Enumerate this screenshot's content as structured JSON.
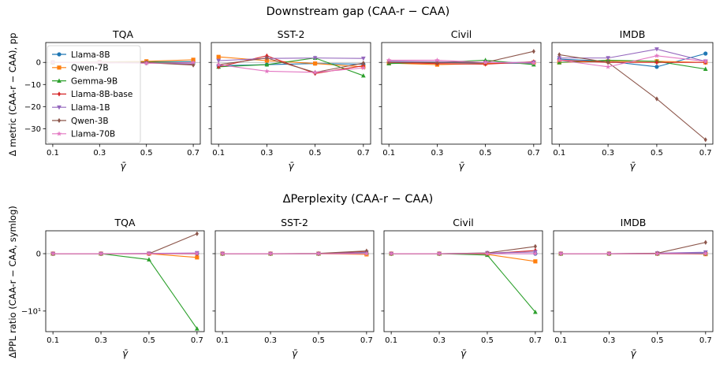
{
  "colors": {
    "Llama-8B": "#1f77b4",
    "Qwen-7B": "#ff7f0e",
    "Gemma-9B": "#2ca02c",
    "Llama-8B-base": "#d62728",
    "Llama-1B": "#9467bd",
    "Qwen-3B": "#8c564b",
    "Llama-70B": "#e377c2"
  },
  "markers": {
    "Llama-8B": "circle",
    "Qwen-7B": "square",
    "Gemma-9B": "triangle-up",
    "Llama-8B-base": "diamond",
    "Llama-1B": "triangle-down",
    "Qwen-3B": "diamond",
    "Llama-70B": "star"
  },
  "legend": {
    "entries": [
      "Llama-8B",
      "Qwen-7B",
      "Gemma-9B",
      "Llama-8B-base",
      "Llama-1B",
      "Qwen-3B",
      "Llama-70B"
    ],
    "placement": "upper-left of first panel"
  },
  "chart_data": [
    {
      "type": "line",
      "title": "Downstream gap (CAA-r − CAA)",
      "ylabel": "Δ metric (CAA-r − CAA), pp",
      "xlabel": "γ̄",
      "x": [
        0.1,
        0.3,
        0.5,
        0.7
      ],
      "xticks": [
        "0.1",
        "0.3",
        "0.5",
        "0.7"
      ],
      "xlim": [
        0.07,
        0.73
      ],
      "ylim": [
        -37,
        9
      ],
      "yscale": "linear",
      "yticks": [
        0,
        -10,
        -20,
        -30
      ],
      "ytick_labels": [
        "0",
        "−10",
        "−20",
        "−30"
      ],
      "shared_y": true,
      "zero_line": true,
      "panels": [
        {
          "title": "TQA",
          "series": [
            {
              "name": "Llama-8B",
              "values": [
                0.0,
                -0.3,
                0.2,
                0.4
              ]
            },
            {
              "name": "Qwen-7B",
              "values": [
                0.0,
                0.2,
                0.5,
                1.2
              ]
            },
            {
              "name": "Gemma-9B",
              "values": [
                0.0,
                0.1,
                0.1,
                0.0
              ]
            },
            {
              "name": "Llama-8B-base",
              "values": [
                0.0,
                -0.2,
                0.0,
                -1.0
              ]
            },
            {
              "name": "Llama-1B",
              "values": [
                0.0,
                0.0,
                -0.3,
                -0.6
              ]
            },
            {
              "name": "Qwen-3B",
              "values": [
                0.0,
                0.1,
                -0.1,
                -1.2
              ]
            },
            {
              "name": "Llama-70B",
              "values": [
                0.0,
                -0.1,
                -0.4,
                0.0
              ]
            }
          ]
        },
        {
          "title": "SST-2",
          "series": [
            {
              "name": "Llama-8B",
              "values": [
                -1.5,
                -1.0,
                -0.5,
                -0.8
              ]
            },
            {
              "name": "Qwen-7B",
              "values": [
                2.5,
                0.8,
                -0.5,
                -2.0
              ]
            },
            {
              "name": "Gemma-9B",
              "values": [
                -2.0,
                -1.0,
                2.0,
                -6.0
              ]
            },
            {
              "name": "Llama-8B-base",
              "values": [
                -2.0,
                3.0,
                -5.0,
                -1.5
              ]
            },
            {
              "name": "Llama-1B",
              "values": [
                0.8,
                1.8,
                2.0,
                1.8
              ]
            },
            {
              "name": "Qwen-3B",
              "values": [
                -1.0,
                2.0,
                -4.5,
                -0.3
              ]
            },
            {
              "name": "Llama-70B",
              "values": [
                -1.0,
                -4.0,
                -4.5,
                -2.5
              ]
            }
          ]
        },
        {
          "title": "Civil",
          "series": [
            {
              "name": "Llama-8B",
              "values": [
                0.0,
                0.0,
                -0.3,
                -0.5
              ]
            },
            {
              "name": "Qwen-7B",
              "values": [
                -0.3,
                -1.0,
                -0.5,
                0.0
              ]
            },
            {
              "name": "Gemma-9B",
              "values": [
                -0.5,
                0.0,
                1.0,
                -1.0
              ]
            },
            {
              "name": "Llama-8B-base",
              "values": [
                0.0,
                -0.5,
                -0.8,
                0.3
              ]
            },
            {
              "name": "Llama-1B",
              "values": [
                0.5,
                0.3,
                0.0,
                0.0
              ]
            },
            {
              "name": "Qwen-3B",
              "values": [
                0.0,
                0.0,
                0.0,
                5.0
              ]
            },
            {
              "name": "Llama-70B",
              "values": [
                1.0,
                1.0,
                0.0,
                -0.3
              ]
            }
          ]
        },
        {
          "title": "IMDB",
          "series": [
            {
              "name": "Llama-8B",
              "values": [
                1.5,
                0.5,
                -2.0,
                4.0
              ]
            },
            {
              "name": "Qwen-7B",
              "values": [
                0.0,
                0.5,
                0.5,
                0.0
              ]
            },
            {
              "name": "Gemma-9B",
              "values": [
                0.0,
                1.0,
                0.5,
                -3.0
              ]
            },
            {
              "name": "Llama-8B-base",
              "values": [
                1.0,
                0.0,
                0.0,
                0.0
              ]
            },
            {
              "name": "Llama-1B",
              "values": [
                2.0,
                2.0,
                6.0,
                0.5
              ]
            },
            {
              "name": "Qwen-3B",
              "values": [
                3.5,
                0.0,
                -16.5,
                -35.0
              ]
            },
            {
              "name": "Llama-70B",
              "values": [
                1.0,
                -2.0,
                3.0,
                0.5
              ]
            }
          ]
        }
      ]
    },
    {
      "type": "line",
      "title": "ΔPerplexity (CAA-r − CAA)",
      "ylabel": "ΔPPL ratio (CAA-r − CAA, symlog)",
      "xlabel": "γ̄",
      "x": [
        0.1,
        0.3,
        0.5,
        0.7
      ],
      "xticks": [
        "0.1",
        "0.3",
        "0.5",
        "0.7"
      ],
      "xlim": [
        0.07,
        0.73
      ],
      "ylim": [
        -25,
        1.6
      ],
      "yscale": "symlog",
      "yticks": [
        0,
        -10
      ],
      "ytick_labels": [
        "0",
        "−10¹"
      ],
      "shared_y": true,
      "zero_line": true,
      "panels": [
        {
          "title": "TQA",
          "series": [
            {
              "name": "Llama-8B",
              "values": [
                0.0,
                0.0,
                0.0,
                0.0
              ]
            },
            {
              "name": "Qwen-7B",
              "values": [
                0.0,
                0.0,
                0.0,
                -0.17
              ]
            },
            {
              "name": "Gemma-9B",
              "values": [
                0.0,
                0.0,
                -0.28,
                -22.0
              ]
            },
            {
              "name": "Llama-8B-base",
              "values": [
                0.0,
                0.0,
                0.0,
                0.0
              ]
            },
            {
              "name": "Llama-1B",
              "values": [
                0.0,
                0.0,
                0.01,
                0.03
              ]
            },
            {
              "name": "Qwen-3B",
              "values": [
                0.0,
                0.0,
                0.0,
                1.3
              ]
            },
            {
              "name": "Llama-70B",
              "values": [
                0.0,
                0.0,
                0.0,
                0.01
              ]
            }
          ]
        },
        {
          "title": "SST-2",
          "series": [
            {
              "name": "Llama-8B",
              "values": [
                0.0,
                0.0,
                0.0,
                0.0
              ]
            },
            {
              "name": "Qwen-7B",
              "values": [
                0.0,
                0.0,
                0.0,
                -0.03
              ]
            },
            {
              "name": "Gemma-9B",
              "values": [
                0.0,
                0.0,
                0.0,
                0.05
              ]
            },
            {
              "name": "Llama-8B-base",
              "values": [
                0.0,
                0.0,
                0.0,
                0.1
              ]
            },
            {
              "name": "Llama-1B",
              "values": [
                0.0,
                0.0,
                0.0,
                0.05
              ]
            },
            {
              "name": "Qwen-3B",
              "values": [
                0.0,
                0.0,
                0.01,
                0.12
              ]
            },
            {
              "name": "Llama-70B",
              "values": [
                0.0,
                0.0,
                0.0,
                0.0
              ]
            }
          ]
        },
        {
          "title": "Civil",
          "series": [
            {
              "name": "Llama-8B",
              "values": [
                0.0,
                0.0,
                0.0,
                0.0
              ]
            },
            {
              "name": "Qwen-7B",
              "values": [
                0.0,
                0.0,
                -0.03,
                -0.38
              ]
            },
            {
              "name": "Gemma-9B",
              "values": [
                0.0,
                0.0,
                -0.06,
                -10.5
              ]
            },
            {
              "name": "Llama-8B-base",
              "values": [
                0.0,
                0.0,
                0.0,
                0.14
              ]
            },
            {
              "name": "Llama-1B",
              "values": [
                0.0,
                0.0,
                0.03,
                0.07
              ]
            },
            {
              "name": "Qwen-3B",
              "values": [
                0.0,
                0.0,
                0.03,
                0.35
              ]
            },
            {
              "name": "Llama-70B",
              "values": [
                0.0,
                0.0,
                0.0,
                0.0
              ]
            }
          ]
        },
        {
          "title": "IMDB",
          "series": [
            {
              "name": "Llama-8B",
              "values": [
                0.0,
                0.0,
                0.0,
                0.03
              ]
            },
            {
              "name": "Qwen-7B",
              "values": [
                0.0,
                0.0,
                0.0,
                -0.02
              ]
            },
            {
              "name": "Gemma-9B",
              "values": [
                0.0,
                0.0,
                0.0,
                0.0
              ]
            },
            {
              "name": "Llama-8B-base",
              "values": [
                0.0,
                0.0,
                0.0,
                0.0
              ]
            },
            {
              "name": "Llama-1B",
              "values": [
                0.0,
                0.0,
                0.02,
                0.06
              ]
            },
            {
              "name": "Qwen-3B",
              "values": [
                0.0,
                0.0,
                0.02,
                0.6
              ]
            },
            {
              "name": "Llama-70B",
              "values": [
                0.0,
                0.0,
                0.0,
                0.0
              ]
            }
          ]
        }
      ]
    }
  ]
}
